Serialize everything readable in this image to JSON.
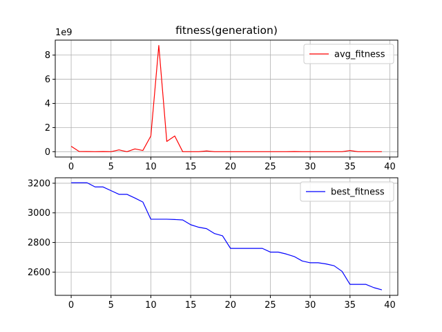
{
  "chart_data": [
    {
      "type": "line",
      "title": "fitness(generation)",
      "xlabel": "",
      "ylabel": "",
      "y_offset_label": "1e9",
      "xlim": [
        -2,
        41
      ],
      "ylim": [
        -0.44,
        9.24
      ],
      "x_ticks": [
        0,
        5,
        10,
        15,
        20,
        25,
        30,
        35,
        40
      ],
      "y_ticks": [
        0,
        2,
        4,
        6,
        8
      ],
      "grid": true,
      "legend_placement": "top-right",
      "series": [
        {
          "name": "avg_fitness",
          "color": "#ff0000",
          "x": [
            0,
            1,
            2,
            3,
            4,
            5,
            6,
            7,
            8,
            9,
            10,
            11,
            12,
            13,
            14,
            15,
            16,
            17,
            18,
            19,
            20,
            21,
            22,
            23,
            24,
            25,
            26,
            27,
            28,
            29,
            30,
            31,
            32,
            33,
            34,
            35,
            36,
            37,
            38,
            39
          ],
          "values": [
            0.45,
            0.02,
            0.01,
            0.0,
            0.01,
            0.0,
            0.15,
            0.0,
            0.23,
            0.1,
            1.3,
            8.8,
            0.85,
            1.3,
            0.0,
            0.0,
            0.0,
            0.06,
            0.0,
            0.0,
            0.0,
            0.0,
            0.0,
            0.0,
            0.0,
            0.0,
            0.0,
            0.0,
            0.01,
            0.0,
            0.0,
            0.0,
            0.0,
            0.0,
            0.0,
            0.1,
            0.0,
            0.0,
            0.0,
            0.0
          ]
        }
      ]
    },
    {
      "type": "line",
      "title": "",
      "xlabel": "",
      "ylabel": "",
      "xlim": [
        -2,
        41
      ],
      "ylim": [
        2443,
        3237
      ],
      "x_ticks": [
        0,
        5,
        10,
        15,
        20,
        25,
        30,
        35,
        40
      ],
      "y_ticks": [
        2600,
        2800,
        3000,
        3200
      ],
      "grid": true,
      "legend_placement": "top-right",
      "series": [
        {
          "name": "best_fitness",
          "color": "#0000ff",
          "x": [
            0,
            1,
            2,
            3,
            4,
            5,
            6,
            7,
            8,
            9,
            10,
            11,
            12,
            13,
            14,
            15,
            16,
            17,
            18,
            19,
            20,
            21,
            22,
            23,
            24,
            25,
            26,
            27,
            28,
            29,
            30,
            31,
            32,
            33,
            34,
            35,
            36,
            37,
            38,
            39
          ],
          "values": [
            3203,
            3203,
            3203,
            3175,
            3175,
            3150,
            3125,
            3125,
            3100,
            3073,
            2957,
            2957,
            2957,
            2955,
            2952,
            2920,
            2903,
            2893,
            2860,
            2845,
            2760,
            2760,
            2760,
            2760,
            2760,
            2735,
            2735,
            2722,
            2705,
            2675,
            2663,
            2663,
            2655,
            2643,
            2605,
            2517,
            2517,
            2517,
            2495,
            2480
          ]
        }
      ]
    }
  ]
}
